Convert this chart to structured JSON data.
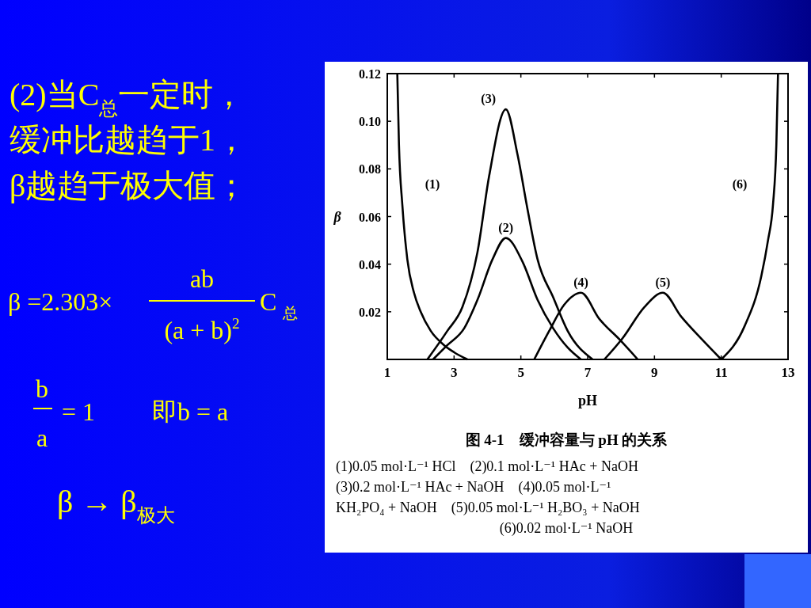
{
  "chart_data": {
    "type": "line",
    "title": "图 4-1　缓冲容量与 pH 的关系",
    "xlabel": "pH",
    "ylabel": "β",
    "xlim": [
      1,
      13
    ],
    "ylim": [
      0,
      0.12
    ],
    "xticks": [
      1,
      3,
      5,
      7,
      9,
      11,
      13
    ],
    "yticks": [
      0.02,
      0.04,
      0.06,
      0.08,
      {
        "value": 0.1,
        "label": "0.10"
      },
      0.12
    ],
    "grid": false,
    "series": [
      {
        "name": "(1)",
        "color": "#000000",
        "x": [
          1.3,
          1.35,
          1.45,
          1.6,
          1.8,
          2.0,
          2.3,
          2.7,
          3.0,
          3.4
        ],
        "values": [
          0.12,
          0.09,
          0.065,
          0.042,
          0.028,
          0.02,
          0.012,
          0.006,
          0.003,
          0
        ]
      },
      {
        "name": "(2)",
        "color": "#000000",
        "x": [
          2.37,
          2.8,
          3.3,
          3.7,
          4.15,
          4.55,
          5.05,
          5.5,
          5.97,
          6.4,
          6.8
        ],
        "values": [
          0,
          0.006,
          0.013,
          0.025,
          0.042,
          0.051,
          0.041,
          0.025,
          0.013,
          0.005,
          0
        ]
      },
      {
        "name": "(3)",
        "color": "#000000",
        "x": [
          2.2,
          2.8,
          3.25,
          3.7,
          4.05,
          4.55,
          4.9,
          5.2,
          5.5,
          5.97,
          6.4,
          7.15
        ],
        "values": [
          0,
          0.012,
          0.022,
          0.045,
          0.077,
          0.105,
          0.086,
          0.063,
          0.042,
          0.026,
          0.012,
          0
        ]
      },
      {
        "name": "(4)",
        "color": "#000000",
        "x": [
          5.4,
          5.85,
          6.3,
          6.8,
          7.35,
          7.98,
          8.5
        ],
        "values": [
          0,
          0.012,
          0.023,
          0.028,
          0.017,
          0.008,
          0
        ]
      },
      {
        "name": "(5)",
        "color": "#000000",
        "x": [
          7.5,
          8.05,
          8.7,
          9.25,
          9.8,
          10.45,
          11
        ],
        "values": [
          0,
          0.009,
          0.022,
          0.028,
          0.018,
          0.008,
          0
        ]
      },
      {
        "name": "(6)",
        "color": "#000000",
        "x": [
          11,
          11.7,
          12.2,
          12.4,
          12.55,
          12.65,
          12.7
        ],
        "values": [
          0,
          0.014,
          0.035,
          0.05,
          0.065,
          0.09,
          0.12
        ]
      }
    ],
    "annotations": [
      "(2)当C$_{总}$一定时，",
      "缓冲比越趋于1，",
      "β越趋于极大值；",
      "β =2.303×",
      "ab",
      "(a + b)$^{2}$",
      "C $_{总}$",
      "b",
      "a",
      "= 1",
      "即b = a",
      "β → β$_{极大}$",
      "(1)0.05 mol·L⁻¹ HCl　(2)0.1 mol·L⁻¹ HAc + NaOH",
      "(3)0.2 mol·L⁻¹ HAc + NaOH　(4)0.05 mol·L⁻¹",
      "KH₂PO₄ + NaOH　(5)0.05 mol·L⁻¹ H₂BO₃ + NaOH",
      "(6)0.02 mol·L⁻¹ NaOH"
    ]
  }
}
